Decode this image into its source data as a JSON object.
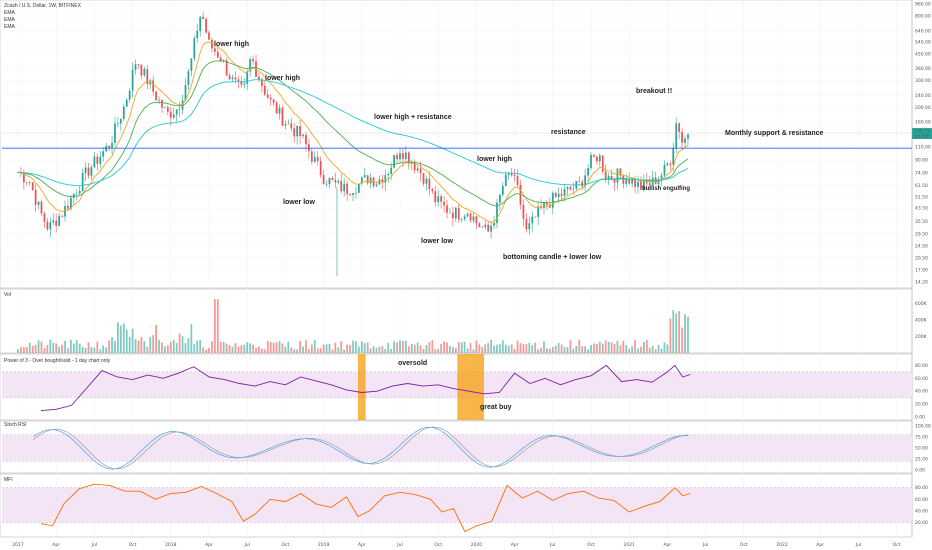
{
  "header": {
    "title": "Zcash / U.S. Dollar, 1W, BITFINEX",
    "ema_labels": [
      "EMA",
      "EMA",
      "EMA"
    ]
  },
  "colors": {
    "up": "#26a69a",
    "down": "#ef5350",
    "ema_fast": "#f5a623",
    "ema_mid": "#4caf50",
    "ema_slow": "#26c6da",
    "support": "#2962ff",
    "osc": "#7b1fa2",
    "mfi": "#ff6d00",
    "band": "#f3e5f5",
    "highlight": "#f59e0b",
    "price_tag": "#26a69a"
  },
  "chart_data": {
    "type": "candlestick",
    "price_axis": {
      "scale": "log",
      "ticks": [
        "960.00",
        "800.00",
        "640.00",
        "540.00",
        "450.00",
        "360.00",
        "300.00",
        "240.00",
        "200.00",
        "160.00",
        "130.00",
        "110.00",
        "90.00",
        "74.00",
        "61.50",
        "51.50",
        "43.50",
        "35.50",
        "29.50",
        "24.50",
        "20.50",
        "17.00",
        "14.20"
      ],
      "current_price": "135.75",
      "current_sub": "3d 16h",
      "support_level": 108
    },
    "time_axis": [
      "2017",
      "Apr",
      "Jul",
      "Oct",
      "2018",
      "Apr",
      "Jul",
      "Oct",
      "2019",
      "Apr",
      "Jul",
      "Oct",
      "2020",
      "Apr",
      "Jul",
      "Oct",
      "2021",
      "Apr",
      "Jul",
      "Oct",
      "2022",
      "Apr",
      "Jul",
      "Oct"
    ],
    "price_path": [
      [
        0,
        75
      ],
      [
        0.3,
        66
      ],
      [
        0.6,
        40
      ],
      [
        0.8,
        32
      ],
      [
        1.2,
        42
      ],
      [
        1.8,
        75
      ],
      [
        2.4,
        115
      ],
      [
        2.8,
        210
      ],
      [
        3.1,
        420
      ],
      [
        3.3,
        330
      ],
      [
        3.6,
        240
      ],
      [
        3.9,
        180
      ],
      [
        4.2,
        200
      ],
      [
        4.5,
        360
      ],
      [
        4.7,
        680
      ],
      [
        4.8,
        860
      ],
      [
        5.0,
        520
      ],
      [
        5.3,
        430
      ],
      [
        5.6,
        300
      ],
      [
        5.9,
        250
      ],
      [
        6.1,
        430
      ],
      [
        6.4,
        280
      ],
      [
        6.6,
        220
      ],
      [
        7.0,
        160
      ],
      [
        7.4,
        130
      ],
      [
        7.7,
        95
      ],
      [
        8.0,
        70
      ],
      [
        8.3,
        62
      ],
      [
        8.6,
        58
      ],
      [
        8.9,
        62
      ],
      [
        9.2,
        70
      ],
      [
        9.4,
        65
      ],
      [
        9.7,
        78
      ],
      [
        10.0,
        108
      ],
      [
        10.3,
        90
      ],
      [
        10.6,
        72
      ],
      [
        10.9,
        50
      ],
      [
        11.2,
        43
      ],
      [
        11.5,
        40
      ],
      [
        11.8,
        42
      ],
      [
        12.0,
        35
      ],
      [
        12.3,
        30
      ],
      [
        12.5,
        40
      ],
      [
        12.7,
        62
      ],
      [
        12.9,
        75
      ],
      [
        13.1,
        55
      ],
      [
        13.3,
        30
      ],
      [
        13.6,
        40
      ],
      [
        13.9,
        48
      ],
      [
        14.3,
        55
      ],
      [
        14.7,
        62
      ],
      [
        15.0,
        88
      ],
      [
        15.2,
        98
      ],
      [
        15.4,
        70
      ],
      [
        15.7,
        72
      ],
      [
        16.0,
        68
      ],
      [
        16.3,
        60
      ],
      [
        16.6,
        64
      ],
      [
        16.9,
        75
      ],
      [
        17.1,
        95
      ],
      [
        17.25,
        170
      ],
      [
        17.4,
        115
      ],
      [
        17.55,
        140
      ]
    ],
    "volume": {
      "title": "Vol",
      "ticks": [
        "600K",
        "400K",
        "200K"
      ]
    },
    "power3": {
      "title": "Power of 3 - Over bought/sold - 1 day chart only",
      "ticks": [
        "80.00",
        "60.00",
        "40.00",
        "20.00",
        "0.00"
      ],
      "band": [
        30,
        70
      ],
      "values": [
        [
          0.6,
          10
        ],
        [
          1.0,
          12
        ],
        [
          1.4,
          18
        ],
        [
          1.8,
          45
        ],
        [
          2.2,
          72
        ],
        [
          2.6,
          62
        ],
        [
          3.0,
          58
        ],
        [
          3.4,
          65
        ],
        [
          3.8,
          60
        ],
        [
          4.2,
          68
        ],
        [
          4.6,
          78
        ],
        [
          5.0,
          62
        ],
        [
          5.4,
          58
        ],
        [
          5.8,
          52
        ],
        [
          6.2,
          48
        ],
        [
          6.6,
          55
        ],
        [
          7.0,
          50
        ],
        [
          7.4,
          62
        ],
        [
          7.8,
          56
        ],
        [
          8.2,
          50
        ],
        [
          8.6,
          42
        ],
        [
          9.0,
          38
        ],
        [
          9.4,
          40
        ],
        [
          9.8,
          48
        ],
        [
          10.2,
          52
        ],
        [
          10.6,
          48
        ],
        [
          11.0,
          50
        ],
        [
          11.4,
          44
        ],
        [
          11.8,
          40
        ],
        [
          12.2,
          36
        ],
        [
          12.6,
          38
        ],
        [
          13.0,
          68
        ],
        [
          13.4,
          52
        ],
        [
          13.8,
          60
        ],
        [
          14.2,
          50
        ],
        [
          14.6,
          58
        ],
        [
          15.0,
          64
        ],
        [
          15.4,
          80
        ],
        [
          15.8,
          55
        ],
        [
          16.2,
          58
        ],
        [
          16.6,
          54
        ],
        [
          17.0,
          70
        ],
        [
          17.2,
          80
        ],
        [
          17.4,
          62
        ],
        [
          17.6,
          66
        ]
      ],
      "zones": [
        [
          8.9,
          9.1
        ],
        [
          11.5,
          12.2
        ]
      ]
    },
    "stoch": {
      "title": "Stoch RSI",
      "ticks": [
        "100.00",
        "75.00",
        "50.00",
        "25.00",
        "0.00"
      ],
      "band": [
        20,
        80
      ]
    },
    "mfi_pane": {
      "title": "MFI",
      "ticks": [
        "80.00",
        "60.00",
        "40.00",
        "20.00"
      ],
      "band": [
        20,
        80
      ],
      "values": [
        [
          0.6,
          18
        ],
        [
          0.9,
          14
        ],
        [
          1.2,
          52
        ],
        [
          1.6,
          78
        ],
        [
          2.0,
          86
        ],
        [
          2.4,
          84
        ],
        [
          2.8,
          74
        ],
        [
          3.2,
          74
        ],
        [
          3.6,
          60
        ],
        [
          4.0,
          70
        ],
        [
          4.4,
          72
        ],
        [
          4.8,
          82
        ],
        [
          5.2,
          70
        ],
        [
          5.6,
          56
        ],
        [
          5.9,
          22
        ],
        [
          6.2,
          34
        ],
        [
          6.6,
          60
        ],
        [
          7.0,
          56
        ],
        [
          7.4,
          70
        ],
        [
          7.8,
          52
        ],
        [
          8.2,
          46
        ],
        [
          8.6,
          64
        ],
        [
          8.9,
          30
        ],
        [
          9.2,
          40
        ],
        [
          9.6,
          66
        ],
        [
          10.0,
          72
        ],
        [
          10.4,
          68
        ],
        [
          10.8,
          60
        ],
        [
          11.1,
          38
        ],
        [
          11.4,
          44
        ],
        [
          11.7,
          4
        ],
        [
          12.0,
          14
        ],
        [
          12.4,
          22
        ],
        [
          12.8,
          84
        ],
        [
          13.2,
          62
        ],
        [
          13.6,
          74
        ],
        [
          14.0,
          58
        ],
        [
          14.4,
          70
        ],
        [
          14.8,
          74
        ],
        [
          15.2,
          62
        ],
        [
          15.6,
          58
        ],
        [
          16.0,
          38
        ],
        [
          16.4,
          48
        ],
        [
          16.8,
          56
        ],
        [
          17.2,
          80
        ],
        [
          17.4,
          66
        ],
        [
          17.6,
          70
        ]
      ]
    }
  },
  "annotations": [
    {
      "text": "lower high"
    },
    {
      "text": "lower high"
    },
    {
      "text": "lower high + resistance"
    },
    {
      "text": "resistance"
    },
    {
      "text": "breakout !!"
    },
    {
      "text": "Monthly support & resistance"
    },
    {
      "text": "lower high"
    },
    {
      "text": "bullish engulfing"
    },
    {
      "text": "lower low"
    },
    {
      "text": "lower low"
    },
    {
      "text": "bottoming candle + lower low"
    },
    {
      "text": "oversold"
    },
    {
      "text": "great buy"
    }
  ]
}
